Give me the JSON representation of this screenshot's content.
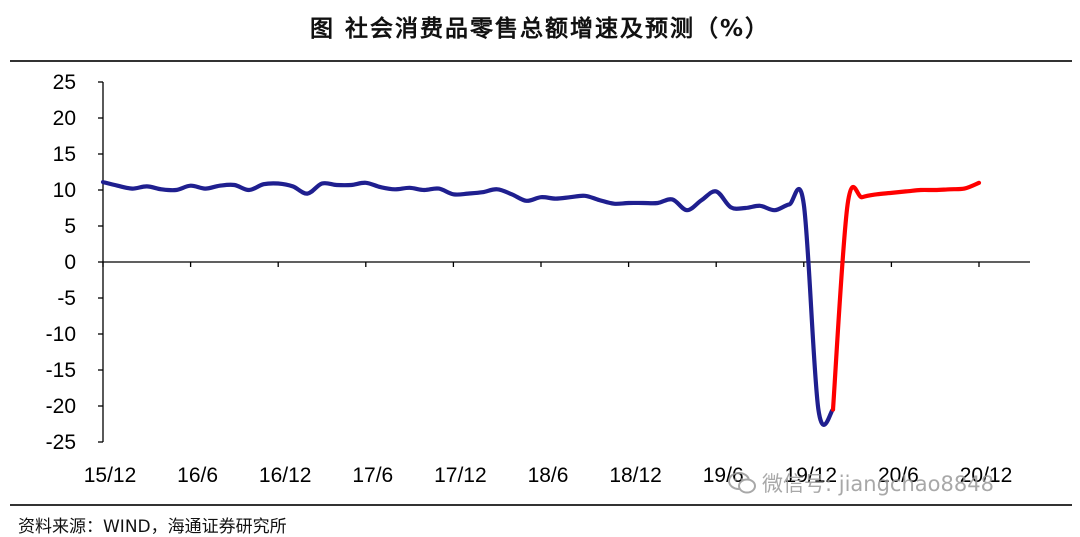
{
  "page": {
    "title": "图    社会消费品零售总额增速及预测（%）",
    "source": "资料来源：WIND，海通证券研究所",
    "watermark": "微信号: jiangchao8848",
    "watermark_icon": "wechat-icon"
  },
  "chart_data": {
    "type": "line",
    "title": "图    社会消费品零售总额增速及预测（%）",
    "xlabel": "",
    "ylabel": "",
    "ylim": [
      -25,
      25
    ],
    "yticks": [
      25,
      20,
      15,
      10,
      5,
      0,
      -5,
      -10,
      -15,
      -20,
      -25
    ],
    "x_tick_labels": [
      "15/12",
      "16/6",
      "16/12",
      "17/6",
      "17/12",
      "18/6",
      "18/12",
      "19/6",
      "19/12",
      "20/6",
      "20/12"
    ],
    "grid": false,
    "legend": "none",
    "colors": {
      "actual": "#1f1f8f",
      "forecast": "#ff0000",
      "axis": "#000000"
    },
    "series": [
      {
        "color_key": "actual",
        "x": [
          "15/12",
          "16/1",
          "16/2",
          "16/3",
          "16/4",
          "16/5",
          "16/6",
          "16/7",
          "16/8",
          "16/9",
          "16/10",
          "16/11",
          "16/12",
          "17/1",
          "17/2",
          "17/3",
          "17/4",
          "17/5",
          "17/6",
          "17/7",
          "17/8",
          "17/9",
          "17/10",
          "17/11",
          "17/12",
          "18/1",
          "18/2",
          "18/3",
          "18/4",
          "18/5",
          "18/6",
          "18/7",
          "18/8",
          "18/9",
          "18/10",
          "18/11",
          "18/12",
          "19/1",
          "19/2",
          "19/3",
          "19/4",
          "19/5",
          "19/6",
          "19/7",
          "19/8",
          "19/9",
          "19/10",
          "19/11",
          "19/12",
          "20/1",
          "20/2"
        ],
        "values": [
          11.1,
          10.6,
          10.2,
          10.5,
          10.1,
          10.0,
          10.6,
          10.2,
          10.6,
          10.7,
          10.0,
          10.8,
          10.9,
          10.5,
          9.5,
          10.9,
          10.7,
          10.7,
          11.0,
          10.4,
          10.1,
          10.3,
          10.0,
          10.2,
          9.4,
          9.5,
          9.7,
          10.1,
          9.4,
          8.5,
          9.0,
          8.8,
          9.0,
          9.2,
          8.6,
          8.1,
          8.2,
          8.2,
          8.2,
          8.7,
          7.2,
          8.6,
          9.8,
          7.6,
          7.5,
          7.8,
          7.2,
          8.0,
          8.0,
          -20.5,
          -20.5
        ]
      },
      {
        "color_key": "forecast",
        "x": [
          "20/2",
          "20/3",
          "20/4",
          "20/5",
          "20/6",
          "20/7",
          "20/8",
          "20/9",
          "20/10",
          "20/11",
          "20/12"
        ],
        "values": [
          -20.5,
          8.0,
          9.0,
          9.4,
          9.6,
          9.8,
          10.0,
          10.0,
          10.1,
          10.2,
          11.0
        ]
      }
    ]
  }
}
